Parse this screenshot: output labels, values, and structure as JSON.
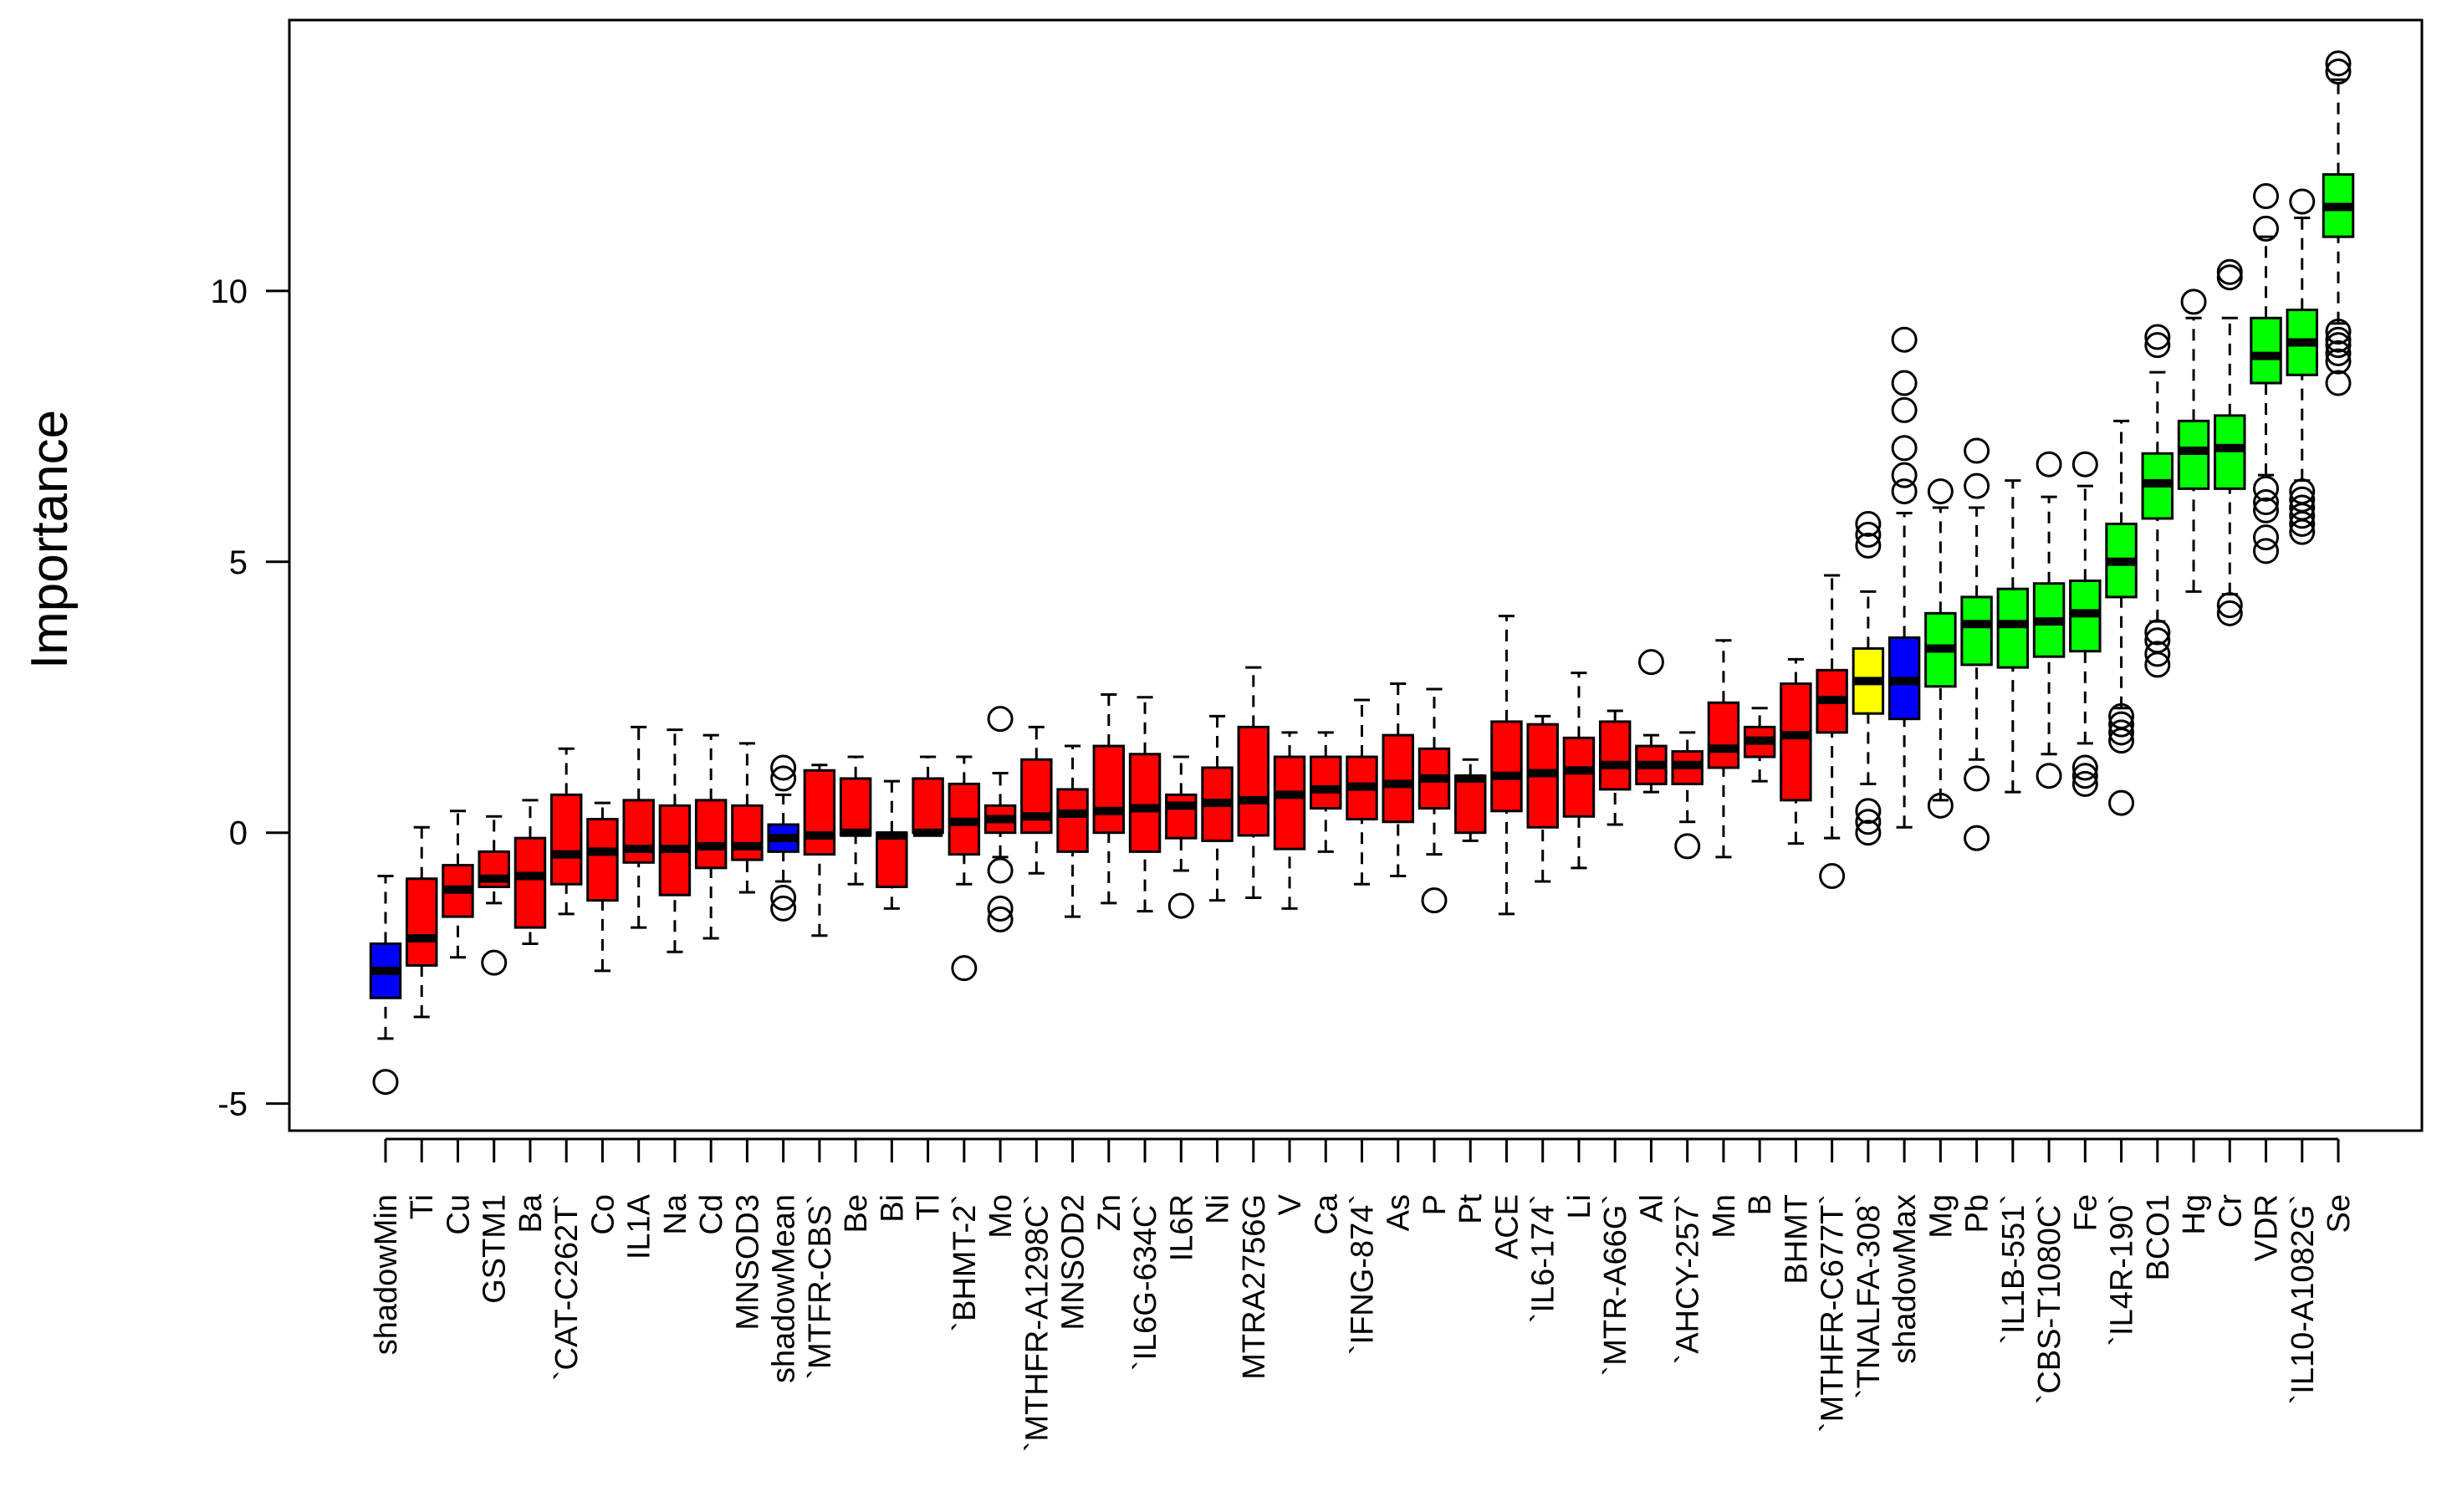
{
  "chart_data": {
    "type": "boxplot",
    "title": "",
    "xlabel": "",
    "ylabel": "Importance",
    "ylim": [
      -5.5,
      15
    ],
    "yticks": [
      -5,
      0,
      5,
      10
    ],
    "ytick_labels": [
      "-5",
      "0",
      "5",
      "10"
    ],
    "grid": false,
    "colors": {
      "Rejected": "#ff0000",
      "Shadow": "#0000ff",
      "Tentative": "#ffff00",
      "Confirmed": "#00ff00"
    },
    "boxes": [
      {
        "label": "shadowMin",
        "status": "Shadow",
        "whisker_low": -3.8,
        "q1": -3.05,
        "median": -2.55,
        "q3": -2.05,
        "whisker_high": -0.8,
        "outliers": [
          -4.6
        ]
      },
      {
        "label": "Ti",
        "status": "Rejected",
        "whisker_low": -3.4,
        "q1": -2.45,
        "median": -1.95,
        "q3": -0.85,
        "whisker_high": 0.1,
        "outliers": []
      },
      {
        "label": "Cu",
        "status": "Rejected",
        "whisker_low": -2.3,
        "q1": -1.55,
        "median": -1.05,
        "q3": -0.6,
        "whisker_high": 0.4,
        "outliers": []
      },
      {
        "label": "GSTM1",
        "status": "Rejected",
        "whisker_low": -1.3,
        "q1": -1.0,
        "median": -0.85,
        "q3": -0.35,
        "whisker_high": 0.3,
        "outliers": [
          -2.4
        ]
      },
      {
        "label": "Ba",
        "status": "Rejected",
        "whisker_low": -2.05,
        "q1": -1.75,
        "median": -0.8,
        "q3": -0.1,
        "whisker_high": 0.6,
        "outliers": []
      },
      {
        "label": "`CAT-C262T`",
        "status": "Rejected",
        "whisker_low": -1.5,
        "q1": -0.95,
        "median": -0.4,
        "q3": 0.7,
        "whisker_high": 1.55,
        "outliers": []
      },
      {
        "label": "Co",
        "status": "Rejected",
        "whisker_low": -2.55,
        "q1": -1.25,
        "median": -0.35,
        "q3": 0.25,
        "whisker_high": 0.55,
        "outliers": []
      },
      {
        "label": "IL1A",
        "status": "Rejected",
        "whisker_low": -1.75,
        "q1": -0.55,
        "median": -0.3,
        "q3": 0.6,
        "whisker_high": 1.95,
        "outliers": []
      },
      {
        "label": "Na",
        "status": "Rejected",
        "whisker_low": -2.2,
        "q1": -1.15,
        "median": -0.3,
        "q3": 0.5,
        "whisker_high": 1.9,
        "outliers": []
      },
      {
        "label": "Cd",
        "status": "Rejected",
        "whisker_low": -1.95,
        "q1": -0.65,
        "median": -0.25,
        "q3": 0.6,
        "whisker_high": 1.8,
        "outliers": []
      },
      {
        "label": "MNSOD3",
        "status": "Rejected",
        "whisker_low": -1.1,
        "q1": -0.5,
        "median": -0.25,
        "q3": 0.5,
        "whisker_high": 1.65,
        "outliers": []
      },
      {
        "label": "shadowMean",
        "status": "Shadow",
        "whisker_low": -0.9,
        "q1": -0.35,
        "median": -0.1,
        "q3": 0.15,
        "whisker_high": 0.7,
        "outliers": [
          -1.4,
          -1.2,
          1.0,
          1.2
        ]
      },
      {
        "label": "`MTFR-CBS`",
        "status": "Rejected",
        "whisker_low": -1.9,
        "q1": -0.4,
        "median": -0.05,
        "q3": 1.15,
        "whisker_high": 1.25,
        "outliers": []
      },
      {
        "label": "Be",
        "status": "Rejected",
        "whisker_low": -0.95,
        "q1": -0.05,
        "median": 0.0,
        "q3": 1.0,
        "whisker_high": 1.4,
        "outliers": []
      },
      {
        "label": "Bi",
        "status": "Rejected",
        "whisker_low": -1.4,
        "q1": -1.0,
        "median": -0.05,
        "q3": 0.0,
        "whisker_high": 0.95,
        "outliers": []
      },
      {
        "label": "Tl",
        "status": "Rejected",
        "whisker_low": 0.0,
        "q1": 0.0,
        "median": 0.0,
        "q3": 1.0,
        "whisker_high": 1.4,
        "outliers": []
      },
      {
        "label": "`BHMT-2`",
        "status": "Rejected",
        "whisker_low": -0.95,
        "q1": -0.4,
        "median": 0.2,
        "q3": 0.9,
        "whisker_high": 1.4,
        "outliers": [
          -2.5
        ]
      },
      {
        "label": "Mo",
        "status": "Rejected",
        "whisker_low": -0.45,
        "q1": 0.0,
        "median": 0.25,
        "q3": 0.5,
        "whisker_high": 1.1,
        "outliers": [
          -0.7,
          -1.4,
          -1.6,
          2.1
        ]
      },
      {
        "label": "`MTHFR-A1298C`",
        "status": "Rejected",
        "whisker_low": -0.75,
        "q1": 0.0,
        "median": 0.3,
        "q3": 1.35,
        "whisker_high": 1.95,
        "outliers": []
      },
      {
        "label": "MNSOD2",
        "status": "Rejected",
        "whisker_low": -1.55,
        "q1": -0.35,
        "median": 0.35,
        "q3": 0.8,
        "whisker_high": 1.6,
        "outliers": []
      },
      {
        "label": "Zn",
        "status": "Rejected",
        "whisker_low": -1.3,
        "q1": 0.0,
        "median": 0.4,
        "q3": 1.6,
        "whisker_high": 2.55,
        "outliers": []
      },
      {
        "label": "`IL6G-634C`",
        "status": "Rejected",
        "whisker_low": -1.45,
        "q1": -0.35,
        "median": 0.45,
        "q3": 1.45,
        "whisker_high": 2.5,
        "outliers": []
      },
      {
        "label": "IL6R",
        "status": "Rejected",
        "whisker_low": -0.7,
        "q1": -0.1,
        "median": 0.5,
        "q3": 0.7,
        "whisker_high": 1.4,
        "outliers": [
          -1.35
        ]
      },
      {
        "label": "Ni",
        "status": "Rejected",
        "whisker_low": -1.25,
        "q1": -0.15,
        "median": 0.55,
        "q3": 1.2,
        "whisker_high": 2.15,
        "outliers": []
      },
      {
        "label": "MTRA2756G",
        "status": "Rejected",
        "whisker_low": -1.2,
        "q1": -0.05,
        "median": 0.6,
        "q3": 1.95,
        "whisker_high": 3.05,
        "outliers": []
      },
      {
        "label": "V",
        "status": "Rejected",
        "whisker_low": -1.4,
        "q1": -0.3,
        "median": 0.7,
        "q3": 1.4,
        "whisker_high": 1.85,
        "outliers": []
      },
      {
        "label": "Ca",
        "status": "Rejected",
        "whisker_low": -0.35,
        "q1": 0.45,
        "median": 0.8,
        "q3": 1.4,
        "whisker_high": 1.85,
        "outliers": []
      },
      {
        "label": "`IFNG-874`",
        "status": "Rejected",
        "whisker_low": -0.95,
        "q1": 0.25,
        "median": 0.85,
        "q3": 1.4,
        "whisker_high": 2.45,
        "outliers": []
      },
      {
        "label": "As",
        "status": "Rejected",
        "whisker_low": -0.8,
        "q1": 0.2,
        "median": 0.9,
        "q3": 1.8,
        "whisker_high": 2.75,
        "outliers": []
      },
      {
        "label": "P",
        "status": "Rejected",
        "whisker_low": -0.4,
        "q1": 0.45,
        "median": 1.0,
        "q3": 1.55,
        "whisker_high": 2.65,
        "outliers": [
          -1.25
        ]
      },
      {
        "label": "Pt",
        "status": "Rejected",
        "whisker_low": -0.15,
        "q1": 0.0,
        "median": 1.0,
        "q3": 1.05,
        "whisker_high": 1.35,
        "outliers": []
      },
      {
        "label": "ACE",
        "status": "Rejected",
        "whisker_low": -1.5,
        "q1": 0.4,
        "median": 1.05,
        "q3": 2.05,
        "whisker_high": 4.0,
        "outliers": []
      },
      {
        "label": "`IL6-174`",
        "status": "Rejected",
        "whisker_low": -0.9,
        "q1": 0.1,
        "median": 1.1,
        "q3": 2.0,
        "whisker_high": 2.15,
        "outliers": []
      },
      {
        "label": "Li",
        "status": "Rejected",
        "whisker_low": -0.65,
        "q1": 0.3,
        "median": 1.15,
        "q3": 1.75,
        "whisker_high": 2.95,
        "outliers": []
      },
      {
        "label": "`MTR-A66G`",
        "status": "Rejected",
        "whisker_low": 0.15,
        "q1": 0.8,
        "median": 1.25,
        "q3": 2.05,
        "whisker_high": 2.25,
        "outliers": []
      },
      {
        "label": "Al",
        "status": "Rejected",
        "whisker_low": 0.75,
        "q1": 0.9,
        "median": 1.25,
        "q3": 1.6,
        "whisker_high": 1.8,
        "outliers": [
          3.15
        ]
      },
      {
        "label": "`AHCY-257`",
        "status": "Rejected",
        "whisker_low": 0.2,
        "q1": 0.9,
        "median": 1.25,
        "q3": 1.5,
        "whisker_high": 1.85,
        "outliers": [
          -0.25
        ]
      },
      {
        "label": "Mn",
        "status": "Rejected",
        "whisker_low": -0.45,
        "q1": 1.2,
        "median": 1.55,
        "q3": 2.4,
        "whisker_high": 3.55,
        "outliers": []
      },
      {
        "label": "B",
        "status": "Rejected",
        "whisker_low": 0.95,
        "q1": 1.4,
        "median": 1.7,
        "q3": 1.95,
        "whisker_high": 2.3,
        "outliers": []
      },
      {
        "label": "BHMT",
        "status": "Rejected",
        "whisker_low": -0.2,
        "q1": 0.6,
        "median": 1.8,
        "q3": 2.75,
        "whisker_high": 3.2,
        "outliers": []
      },
      {
        "label": "`MTHFR-C677T`",
        "status": "Rejected",
        "whisker_low": -0.1,
        "q1": 1.85,
        "median": 2.45,
        "q3": 3.0,
        "whisker_high": 4.75,
        "outliers": [
          -0.8
        ]
      },
      {
        "label": "`TNALFA-308`",
        "status": "Tentative",
        "whisker_low": 0.9,
        "q1": 2.2,
        "median": 2.8,
        "q3": 3.4,
        "whisker_high": 4.45,
        "outliers": [
          0.0,
          0.2,
          0.4,
          5.3,
          5.5,
          5.7
        ]
      },
      {
        "label": "shadowMax",
        "status": "Shadow",
        "whisker_low": 0.1,
        "q1": 2.1,
        "median": 2.8,
        "q3": 3.6,
        "whisker_high": 5.9,
        "outliers": [
          6.3,
          6.6,
          7.1,
          7.8,
          8.3,
          9.1
        ]
      },
      {
        "label": "Mg",
        "status": "Confirmed",
        "whisker_low": 0.6,
        "q1": 2.7,
        "median": 3.4,
        "q3": 4.05,
        "whisker_high": 6.0,
        "outliers": [
          0.5,
          6.3
        ]
      },
      {
        "label": "Pb",
        "status": "Confirmed",
        "whisker_low": 1.35,
        "q1": 3.1,
        "median": 3.85,
        "q3": 4.35,
        "whisker_high": 6.0,
        "outliers": [
          -0.1,
          1.0,
          6.4,
          7.05
        ]
      },
      {
        "label": "`IL1B-551`",
        "status": "Confirmed",
        "whisker_low": 0.75,
        "q1": 3.05,
        "median": 3.85,
        "q3": 4.5,
        "whisker_high": 6.5,
        "outliers": []
      },
      {
        "label": "`CBS-T1080C`",
        "status": "Confirmed",
        "whisker_low": 1.45,
        "q1": 3.25,
        "median": 3.9,
        "q3": 4.6,
        "whisker_high": 6.2,
        "outliers": [
          1.05,
          6.8
        ]
      },
      {
        "label": "Fe",
        "status": "Confirmed",
        "whisker_low": 1.65,
        "q1": 3.35,
        "median": 4.05,
        "q3": 4.65,
        "whisker_high": 6.4,
        "outliers": [
          0.9,
          1.05,
          1.2,
          6.8
        ]
      },
      {
        "label": "`IL4R-190`",
        "status": "Confirmed",
        "whisker_low": 2.3,
        "q1": 4.35,
        "median": 5.0,
        "q3": 5.7,
        "whisker_high": 7.6,
        "outliers": [
          0.55,
          1.7,
          1.85,
          2.0,
          2.15
        ]
      },
      {
        "label": "BCO1",
        "status": "Confirmed",
        "whisker_low": 3.9,
        "q1": 5.8,
        "median": 6.45,
        "q3": 7.0,
        "whisker_high": 8.5,
        "outliers": [
          3.1,
          3.3,
          3.55,
          3.7,
          9.0,
          9.15
        ]
      },
      {
        "label": "Hg",
        "status": "Confirmed",
        "whisker_low": 4.45,
        "q1": 6.35,
        "median": 7.05,
        "q3": 7.6,
        "whisker_high": 9.5,
        "outliers": [
          9.8
        ]
      },
      {
        "label": "Cr",
        "status": "Confirmed",
        "whisker_low": 4.4,
        "q1": 6.35,
        "median": 7.1,
        "q3": 7.7,
        "whisker_high": 9.5,
        "outliers": [
          4.05,
          4.2,
          10.25,
          10.35
        ]
      },
      {
        "label": "VDR",
        "status": "Confirmed",
        "whisker_low": 6.6,
        "q1": 8.3,
        "median": 8.8,
        "q3": 9.5,
        "whisker_high": 11.0,
        "outliers": [
          5.2,
          5.45,
          5.95,
          6.1,
          6.35,
          11.15,
          11.75
        ]
      },
      {
        "label": "`IL10-A1082G`",
        "status": "Confirmed",
        "whisker_low": 6.5,
        "q1": 8.45,
        "median": 9.05,
        "q3": 9.65,
        "whisker_high": 11.35,
        "outliers": [
          5.55,
          5.7,
          5.85,
          6.0,
          6.15,
          6.3,
          11.65
        ]
      },
      {
        "label": "Se",
        "status": "Confirmed",
        "whisker_low": 9.4,
        "q1": 11.0,
        "median": 11.55,
        "q3": 12.15,
        "whisker_high": 13.9,
        "outliers": [
          8.3,
          8.7,
          8.85,
          9.0,
          9.1,
          9.25,
          14.05,
          14.2
        ]
      }
    ]
  }
}
